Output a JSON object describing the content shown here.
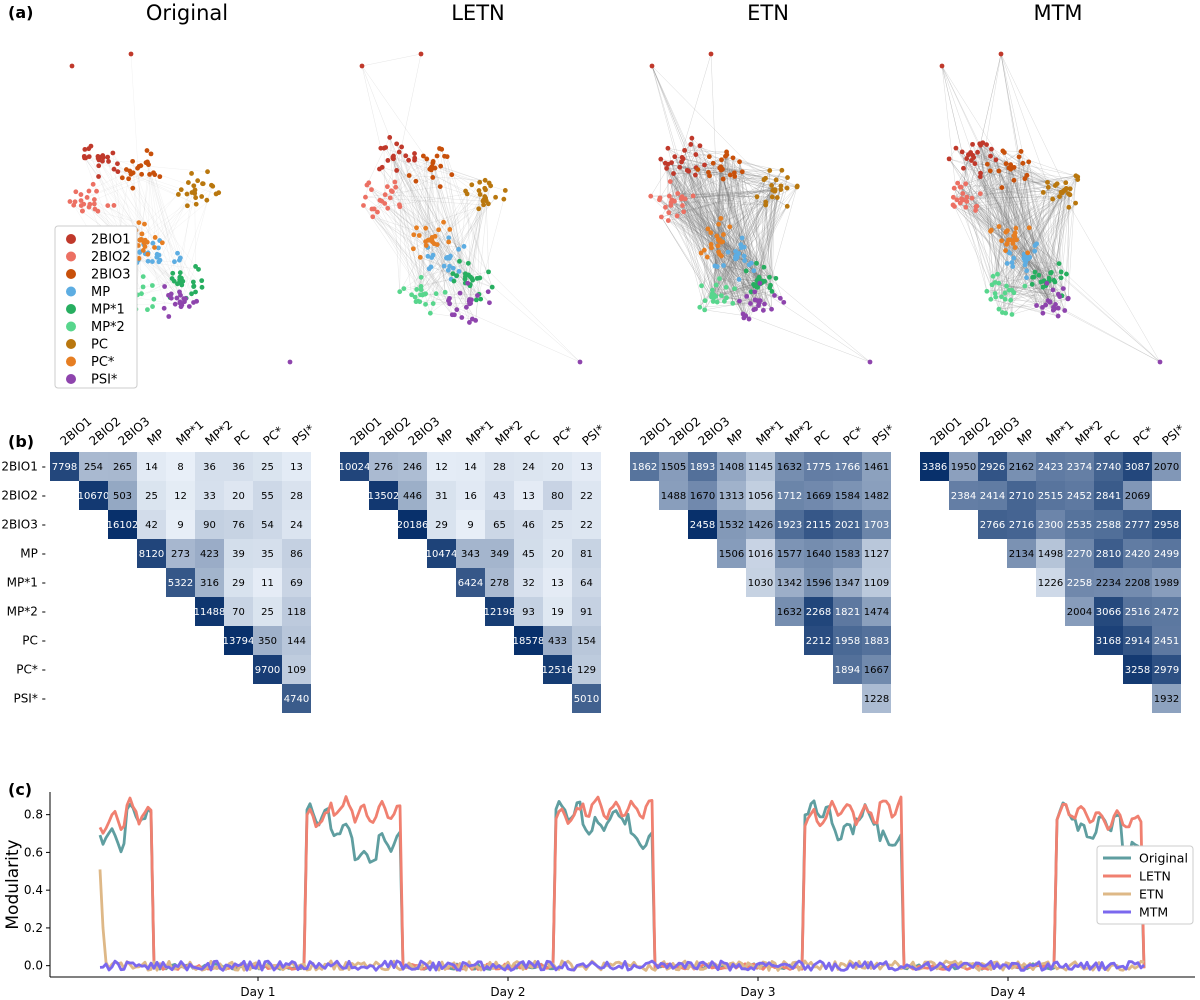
{
  "panel_labels": [
    "(a)",
    "(b)",
    "(c)"
  ],
  "network_titles": [
    "Original",
    "LETN",
    "ETN",
    "MTM"
  ],
  "legend": {
    "items": [
      {
        "label": "2BIO1",
        "color": "#c0392b"
      },
      {
        "label": "2BIO2",
        "color": "#ec7063"
      },
      {
        "label": "2BIO3",
        "color": "#c8500a"
      },
      {
        "label": "MP",
        "color": "#5dade2"
      },
      {
        "label": "MP*1",
        "color": "#27ae60"
      },
      {
        "label": "MP*2",
        "color": "#58d68d"
      },
      {
        "label": "PC",
        "color": "#b9770e"
      },
      {
        "label": "PC*",
        "color": "#e67e22"
      },
      {
        "label": "PSI*",
        "color": "#8e44ad"
      }
    ]
  },
  "chart_data": [
    {
      "type": "heatmap",
      "title": "Original",
      "labels": [
        "2BIO1",
        "2BIO2",
        "2BIO3",
        "MP",
        "MP*1",
        "MP*2",
        "PC",
        "PC*",
        "PSI*"
      ],
      "matrix": [
        [
          7798,
          254,
          265,
          14,
          8,
          36,
          36,
          25,
          13
        ],
        [
          null,
          10670,
          503,
          25,
          12,
          33,
          20,
          55,
          28
        ],
        [
          null,
          null,
          16102,
          42,
          9,
          90,
          76,
          54,
          24
        ],
        [
          null,
          null,
          null,
          8120,
          273,
          423,
          39,
          35,
          86
        ],
        [
          null,
          null,
          null,
          null,
          5322,
          316,
          29,
          11,
          69
        ],
        [
          null,
          null,
          null,
          null,
          null,
          11488,
          70,
          25,
          118
        ],
        [
          null,
          null,
          null,
          null,
          null,
          null,
          13794,
          350,
          144
        ],
        [
          null,
          null,
          null,
          null,
          null,
          null,
          null,
          9700,
          109
        ],
        [
          null,
          null,
          null,
          null,
          null,
          null,
          null,
          null,
          4740
        ]
      ]
    },
    {
      "type": "heatmap",
      "title": "LETN",
      "labels": [
        "2BIO1",
        "2BIO2",
        "2BIO3",
        "MP",
        "MP*1",
        "MP*2",
        "PC",
        "PC*",
        "PSI*"
      ],
      "matrix": [
        [
          10024,
          276,
          246,
          12,
          14,
          28,
          24,
          20,
          13
        ],
        [
          null,
          13502,
          446,
          31,
          16,
          43,
          13,
          80,
          22
        ],
        [
          null,
          null,
          20186,
          29,
          9,
          65,
          46,
          25,
          22
        ],
        [
          null,
          null,
          null,
          10474,
          343,
          349,
          45,
          20,
          81
        ],
        [
          null,
          null,
          null,
          null,
          6424,
          278,
          32,
          13,
          64
        ],
        [
          null,
          null,
          null,
          null,
          null,
          12198,
          93,
          19,
          91
        ],
        [
          null,
          null,
          null,
          null,
          null,
          null,
          18578,
          433,
          154
        ],
        [
          null,
          null,
          null,
          null,
          null,
          null,
          null,
          12516,
          129
        ],
        [
          null,
          null,
          null,
          null,
          null,
          null,
          null,
          null,
          5010
        ]
      ]
    },
    {
      "type": "heatmap",
      "title": "ETN",
      "labels": [
        "2BIO1",
        "2BIO2",
        "2BIO3",
        "MP",
        "MP*1",
        "MP*2",
        "PC",
        "PC*",
        "PSI*"
      ],
      "matrix": [
        [
          1862,
          1505,
          1893,
          1408,
          1145,
          1632,
          1775,
          1766,
          1461
        ],
        [
          null,
          1488,
          1670,
          1313,
          1056,
          1712,
          1669,
          1584,
          1482
        ],
        [
          null,
          null,
          2458,
          1532,
          1426,
          1923,
          2115,
          2021,
          1703
        ],
        [
          null,
          null,
          null,
          1506,
          1016,
          1577,
          1640,
          1583,
          1127
        ],
        [
          null,
          null,
          null,
          null,
          1030,
          1342,
          1596,
          1347,
          1109
        ],
        [
          null,
          null,
          null,
          null,
          null,
          1632,
          2268,
          1821,
          1474
        ],
        [
          null,
          null,
          null,
          null,
          null,
          null,
          2212,
          1958,
          1883
        ],
        [
          null,
          null,
          null,
          null,
          null,
          null,
          null,
          1894,
          1667
        ],
        [
          null,
          null,
          null,
          null,
          null,
          null,
          null,
          null,
          1228
        ]
      ]
    },
    {
      "type": "heatmap",
      "title": "MTM",
      "labels": [
        "2BIO1",
        "2BIO2",
        "2BIO3",
        "MP",
        "MP*1",
        "MP*2",
        "PC",
        "PC*",
        "PSI*"
      ],
      "matrix": [
        [
          3386,
          1950,
          2926,
          2162,
          2423,
          2374,
          2740,
          3087,
          2070
        ],
        [
          null,
          2384,
          2414,
          2710,
          2515,
          2452,
          2841,
          2069,
          null
        ],
        [
          null,
          null,
          2766,
          2716,
          2300,
          2535,
          2588,
          2777,
          2958
        ],
        [
          null,
          null,
          null,
          2134,
          1498,
          2270,
          2810,
          2420,
          2499
        ],
        [
          null,
          null,
          null,
          null,
          1226,
          2258,
          2234,
          2208,
          1989
        ],
        [
          null,
          null,
          null,
          null,
          null,
          2004,
          3066,
          2516,
          2472
        ],
        [
          null,
          null,
          null,
          null,
          null,
          null,
          3168,
          2914,
          2451
        ],
        [
          null,
          null,
          null,
          null,
          null,
          null,
          null,
          3258,
          2979
        ],
        [
          null,
          null,
          null,
          null,
          null,
          null,
          null,
          null,
          1932
        ]
      ]
    },
    {
      "type": "line",
      "ylabel": "Modularity",
      "xticks": [
        "Day 1",
        "Day 2",
        "Day 3",
        "Day 4"
      ],
      "yticks": [
        0.0,
        0.2,
        0.4,
        0.6,
        0.8
      ],
      "ylim": [
        -0.06,
        0.92
      ],
      "legend_position": "right",
      "series": [
        {
          "name": "Original",
          "color": "#5f9ea0",
          "active_level": [
            0.7,
            0.66,
            0.82,
            0.78,
            0.8,
            0.72,
            0.58,
            0.65,
            0.82,
            0.74,
            0.8,
            0.66,
            0.82,
            0.72,
            0.8,
            0.66,
            0.82,
            0.7,
            0.76,
            0.62
          ]
        },
        {
          "name": "LETN",
          "color": "#f08070",
          "active_level": [
            0.76,
            0.78,
            0.83,
            0.8,
            0.78,
            0.84,
            0.8,
            0.82,
            0.8,
            0.84,
            0.82,
            0.83,
            0.78,
            0.82,
            0.8,
            0.84,
            0.82,
            0.8,
            0.78,
            0.76
          ]
        },
        {
          "name": "ETN",
          "color": "#deb887",
          "start_value": 0.51
        },
        {
          "name": "MTM",
          "color": "#7b68ee"
        }
      ]
    }
  ]
}
